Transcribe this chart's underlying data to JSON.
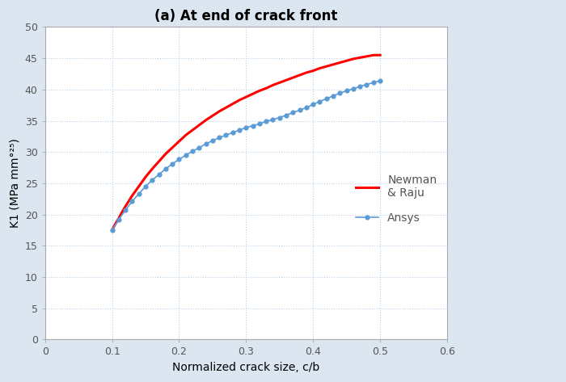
{
  "title": "(a) At end of crack front",
  "xlabel": "Normalized crack size, c/b",
  "ylabel": "K1 (MPa mm°²µ)",
  "xlim": [
    0,
    0.6
  ],
  "ylim": [
    0,
    50
  ],
  "xticks": [
    0,
    0.1,
    0.2,
    0.3,
    0.4,
    0.5,
    0.6
  ],
  "yticks": [
    0,
    5,
    10,
    15,
    20,
    25,
    30,
    35,
    40,
    45,
    50
  ],
  "ansys_x": [
    0.1,
    0.11,
    0.12,
    0.13,
    0.14,
    0.15,
    0.16,
    0.17,
    0.18,
    0.19,
    0.2,
    0.21,
    0.22,
    0.23,
    0.24,
    0.25,
    0.26,
    0.27,
    0.28,
    0.29,
    0.3,
    0.31,
    0.32,
    0.33,
    0.34,
    0.35,
    0.36,
    0.37,
    0.38,
    0.39,
    0.4,
    0.41,
    0.42,
    0.43,
    0.44,
    0.45,
    0.46,
    0.47,
    0.48,
    0.49,
    0.5
  ],
  "ansys_y": [
    17.5,
    19.2,
    20.7,
    22.1,
    23.3,
    24.5,
    25.5,
    26.4,
    27.3,
    28.1,
    28.8,
    29.5,
    30.1,
    30.7,
    31.3,
    31.8,
    32.3,
    32.7,
    33.1,
    33.5,
    33.9,
    34.2,
    34.5,
    34.9,
    35.2,
    35.5,
    35.9,
    36.3,
    36.7,
    37.1,
    37.6,
    38.1,
    38.5,
    39.0,
    39.4,
    39.8,
    40.1,
    40.5,
    40.8,
    41.1,
    41.4
  ],
  "newman_x": [
    0.1,
    0.105,
    0.11,
    0.115,
    0.12,
    0.13,
    0.14,
    0.15,
    0.16,
    0.17,
    0.18,
    0.19,
    0.2,
    0.21,
    0.22,
    0.23,
    0.24,
    0.25,
    0.26,
    0.27,
    0.28,
    0.29,
    0.3,
    0.31,
    0.32,
    0.33,
    0.34,
    0.35,
    0.36,
    0.37,
    0.38,
    0.39,
    0.4,
    0.41,
    0.42,
    0.43,
    0.44,
    0.45,
    0.46,
    0.47,
    0.48,
    0.49,
    0.5
  ],
  "newman_y": [
    17.5,
    18.5,
    19.4,
    20.4,
    21.3,
    23.0,
    24.5,
    26.0,
    27.3,
    28.5,
    29.7,
    30.7,
    31.7,
    32.7,
    33.5,
    34.3,
    35.1,
    35.8,
    36.5,
    37.1,
    37.7,
    38.3,
    38.8,
    39.3,
    39.8,
    40.2,
    40.7,
    41.1,
    41.5,
    41.9,
    42.3,
    42.7,
    43.0,
    43.4,
    43.7,
    44.0,
    44.3,
    44.6,
    44.9,
    45.1,
    45.3,
    45.5,
    45.5
  ],
  "ansys_color": "#5b9bd5",
  "newman_color": "#ff0000",
  "ansys_label": "Ansys",
  "newman_label": "Newman\n& Raju",
  "bg_color": "#dce6f1",
  "plot_bg_color": "#ffffff",
  "grid_color": "#b8d0e8",
  "title_fontsize": 12,
  "label_fontsize": 10,
  "tick_fontsize": 9,
  "legend_fontsize": 10
}
